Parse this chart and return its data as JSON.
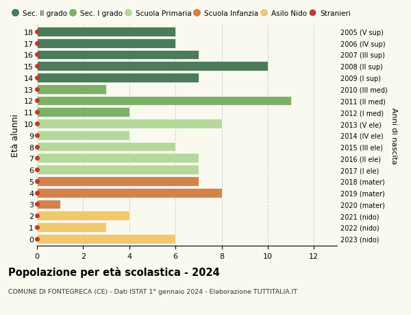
{
  "ages": [
    18,
    17,
    16,
    15,
    14,
    13,
    12,
    11,
    10,
    9,
    8,
    7,
    6,
    5,
    4,
    3,
    2,
    1,
    0
  ],
  "right_labels": [
    "2005 (V sup)",
    "2006 (IV sup)",
    "2007 (III sup)",
    "2008 (II sup)",
    "2009 (I sup)",
    "2010 (III med)",
    "2011 (II med)",
    "2012 (I med)",
    "2013 (V ele)",
    "2014 (IV ele)",
    "2015 (III ele)",
    "2016 (II ele)",
    "2017 (I ele)",
    "2018 (mater)",
    "2019 (mater)",
    "2020 (mater)",
    "2021 (nido)",
    "2022 (nido)",
    "2023 (nido)"
  ],
  "bar_values": [
    6,
    6,
    7,
    10,
    7,
    3,
    11,
    4,
    8,
    4,
    6,
    7,
    7,
    7,
    8,
    1,
    4,
    3,
    6
  ],
  "bar_colors": [
    "#4a7c59",
    "#4a7c59",
    "#4a7c59",
    "#4a7c59",
    "#4a7c59",
    "#7fb069",
    "#7fb069",
    "#7fb069",
    "#b5d99c",
    "#b5d99c",
    "#b5d99c",
    "#b5d99c",
    "#b5d99c",
    "#d4824a",
    "#d4824a",
    "#d4824a",
    "#f0c96e",
    "#f0c96e",
    "#f0c96e"
  ],
  "legend_labels": [
    "Sec. II grado",
    "Sec. I grado",
    "Scuola Primaria",
    "Scuola Infanzia",
    "Asilo Nido",
    "Stranieri"
  ],
  "legend_colors": [
    "#4a7c59",
    "#7fb069",
    "#b5d99c",
    "#d4824a",
    "#f0c96e",
    "#c0392b"
  ],
  "title": "Popolazione per età scolastica - 2024",
  "subtitle": "COMUNE DI FONTEGRECA (CE) - Dati ISTAT 1° gennaio 2024 - Elaborazione TUTTITALIA.IT",
  "ylabel": "Età alunni",
  "right_ylabel": "Anni di nascita",
  "xlim": [
    0,
    13
  ],
  "xticks": [
    0,
    2,
    4,
    6,
    8,
    10,
    12
  ],
  "background_color": "#f9f9f0",
  "grid_color": "#cccccc",
  "stranieri_dot_color": "#c0392b",
  "bar_height": 0.82
}
